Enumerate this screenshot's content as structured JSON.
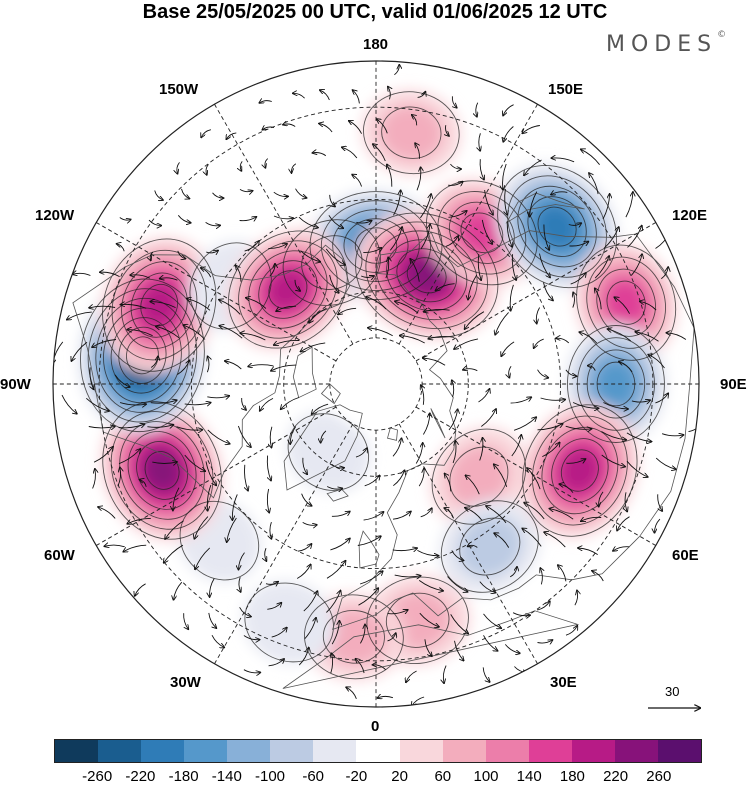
{
  "title": "Base 25/05/2025 00 UTC, valid 01/06/2025 12 UTC",
  "brand": {
    "name": "MODES",
    "mark": "©"
  },
  "longitude_labels": {
    "top": "180",
    "bottom": "0",
    "left": "90W",
    "right": "90E",
    "upper_left_1": "150W",
    "upper_left_2": "120W",
    "upper_right_1": "150E",
    "upper_right_2": "120E",
    "lower_left_1": "60W",
    "lower_left_2": "30W",
    "lower_right_1": "60E",
    "lower_right_2": "30E"
  },
  "vector_scale": {
    "value": "30"
  },
  "colorbar": {
    "colors": [
      "#0f3a5c",
      "#1a5d8f",
      "#2f7cb7",
      "#5598cb",
      "#88b0d8",
      "#bccbe3",
      "#e6e8f2",
      "#ffffff",
      "#f9d7dc",
      "#f3adbd",
      "#ec7eaa",
      "#df3f97",
      "#b71b86",
      "#87127a",
      "#5b0f6e"
    ],
    "ticks": [
      "-260",
      "-220",
      "-180",
      "-140",
      "-100",
      "-60",
      "-20",
      "20",
      "60",
      "100",
      "140",
      "180",
      "220",
      "260"
    ]
  },
  "anomalies": [
    {
      "lon": 200,
      "lat": 62,
      "value": 90
    },
    {
      "lon": 180,
      "lat": 60,
      "value": -200
    },
    {
      "lon": 155,
      "lat": 64,
      "value": 250
    },
    {
      "lon": 145,
      "lat": 50,
      "value": 150
    },
    {
      "lon": 131,
      "lat": 38,
      "value": -200
    },
    {
      "lon": 108,
      "lat": 33,
      "value": 150
    },
    {
      "lon": 90,
      "lat": 38,
      "value": -150
    },
    {
      "lon": 67,
      "lat": 42,
      "value": 210
    },
    {
      "lon": 48,
      "lat": 60,
      "value": 100
    },
    {
      "lon": 35,
      "lat": 47,
      "value": -100
    },
    {
      "lon": 10,
      "lat": 38,
      "value": 100
    },
    {
      "lon": -5,
      "lat": 35,
      "value": 90
    },
    {
      "lon": -20,
      "lat": 35,
      "value": -60
    },
    {
      "lon": -45,
      "lat": 42,
      "value": -40
    },
    {
      "lon": -68,
      "lat": 40,
      "value": 230
    },
    {
      "lon": -97,
      "lat": 39,
      "value": -270
    },
    {
      "lon": -110,
      "lat": 40,
      "value": 210
    },
    {
      "lon": -124,
      "lat": 52,
      "value": -60
    },
    {
      "lon": -137,
      "lat": 62,
      "value": 190
    },
    {
      "lon": 172,
      "lat": 35,
      "value": 80
    },
    {
      "lon": -35,
      "lat": 72,
      "value": -40
    }
  ]
}
